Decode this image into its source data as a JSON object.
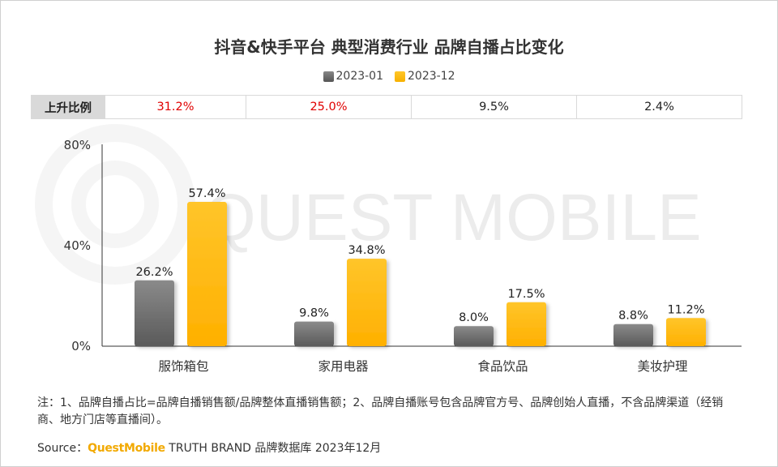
{
  "title": "抖音&快手平台 典型消费行业 品牌自播占比变化",
  "legend": [
    "2023-01",
    "2023-12"
  ],
  "colors": {
    "series_2023_01": "#6e6e6e",
    "series_2023_12": "#ffbc0a",
    "increase_red": "#e00000",
    "axis": "#333333"
  },
  "ratio_table": {
    "header": "上升比例",
    "cells": [
      {
        "value": "31.2%",
        "color": "#e00000"
      },
      {
        "value": "25.0%",
        "color": "#e00000"
      },
      {
        "value": "9.5%",
        "color": "#222222"
      },
      {
        "value": "2.4%",
        "color": "#222222"
      }
    ]
  },
  "chart_data": {
    "type": "bar",
    "categories": [
      "服饰箱包",
      "家用电器",
      "食品饮品",
      "美妆护理"
    ],
    "series": [
      {
        "name": "2023-01",
        "values": [
          26.2,
          9.8,
          8.0,
          8.8
        ],
        "labels": [
          "26.2%",
          "9.8%",
          "8.0%",
          "8.8%"
        ]
      },
      {
        "name": "2023-12",
        "values": [
          57.4,
          34.8,
          17.5,
          11.2
        ],
        "labels": [
          "57.4%",
          "34.8%",
          "17.5%",
          "11.2%"
        ]
      }
    ],
    "yticks": [
      "80%",
      "40%",
      "0%"
    ],
    "ylim": [
      0,
      80
    ],
    "grid": false,
    "legend_position": "top-center"
  },
  "watermark": "QUEST MOBILE",
  "note": "注：1、品牌自播占比=品牌自播销售额/品牌整体直播销售额；2、品牌自播账号包含品牌官方号、品牌创始人直播，不含品牌渠道（经销商、地方门店等直播间）。",
  "source": {
    "label": "Source：",
    "brand": "QuestMobile",
    "text": " TRUTH BRAND 品牌数据库 2023年12月"
  }
}
